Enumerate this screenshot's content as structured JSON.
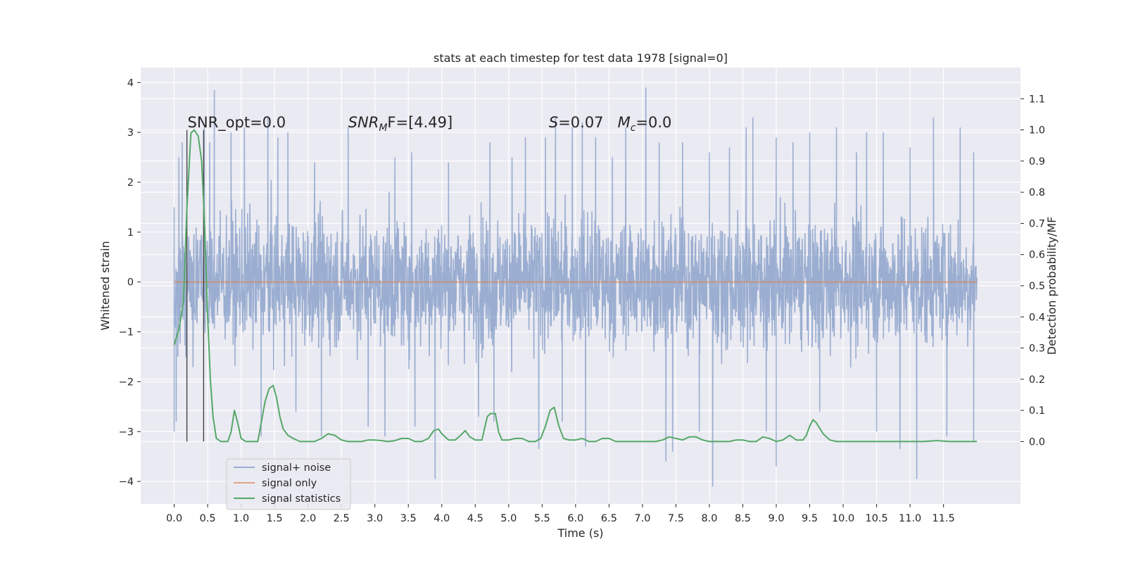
{
  "chart_data": {
    "type": "line",
    "title": "stats at each timestep for test data 1978 [signal=0]",
    "xlabel": "Time (s)",
    "ylabel": "Whitened strain",
    "ylabel_right": "Detection probability/MF",
    "xlim": [
      -0.5,
      12.65
    ],
    "ylim": [
      -4.45,
      4.3
    ],
    "ylim_right": [
      -0.2,
      1.2
    ],
    "x_ticks": [
      0.0,
      0.5,
      1.0,
      1.5,
      2.0,
      2.5,
      3.0,
      3.5,
      4.0,
      4.5,
      5.0,
      5.5,
      6.0,
      6.5,
      7.0,
      7.5,
      8.0,
      8.5,
      9.0,
      9.5,
      10.0,
      10.5,
      11.0,
      11.5
    ],
    "x_tick_labels": [
      "0.0",
      "0.5",
      "1.0",
      "1.5",
      "2.0",
      "2.5",
      "3.0",
      "3.5",
      "4.0",
      "4.5",
      "5.0",
      "5.5",
      "6.0",
      "6.5",
      "7.0",
      "7.5",
      "8.0",
      "8.5",
      "9.0",
      "9.5",
      "10.0",
      "10.5",
      "11.0",
      "11.5"
    ],
    "y_ticks": [
      -4,
      -3,
      -2,
      -1,
      0,
      1,
      2,
      3,
      4
    ],
    "y_tick_labels": [
      "−4",
      "−3",
      "−2",
      "−1",
      "0",
      "1",
      "2",
      "3",
      "4"
    ],
    "y_right_ticks": [
      0.0,
      0.1,
      0.2,
      0.3,
      0.4,
      0.5,
      0.6,
      0.7,
      0.8,
      0.9,
      1.0,
      1.1
    ],
    "y_right_tick_labels": [
      "0.0",
      "0.1",
      "0.2",
      "0.3",
      "0.4",
      "0.5",
      "0.6",
      "0.7",
      "0.8",
      "0.9",
      "1.0",
      "1.1"
    ],
    "grid": true,
    "background": "#eaeaf2",
    "annotations": [
      {
        "text": "SNR_opt=0.0",
        "x": 0.2,
        "y": 3.1
      },
      {
        "text_parts": [
          "SNR",
          "M",
          "F=[4.49]"
        ],
        "x": 2.6,
        "y": 3.1
      },
      {
        "text_parts": [
          "S",
          "=0.07   ",
          "M",
          "c",
          "=0.0"
        ],
        "x": 5.6,
        "y": 3.1
      }
    ],
    "vertical_lines": [
      0.19,
      0.44
    ],
    "series": [
      {
        "name": "signal+ noise",
        "color": "#4c72b0",
        "alpha": 0.5,
        "axis": "left",
        "style": "noise",
        "x_range": [
          0.0,
          12.0
        ],
        "typical_envelope": [
          -1.9,
          1.9
        ],
        "spikes": [
          [
            0.0,
            1.5
          ],
          [
            0.0,
            -3.0
          ],
          [
            0.07,
            2.5
          ],
          [
            0.12,
            2.8
          ],
          [
            0.03,
            -2.8
          ],
          [
            0.45,
            3.1
          ],
          [
            0.53,
            2.8
          ],
          [
            0.6,
            3.85
          ],
          [
            0.85,
            3.0
          ],
          [
            1.05,
            3.1
          ],
          [
            1.3,
            -3.1
          ],
          [
            1.4,
            3.3
          ],
          [
            1.55,
            2.9
          ],
          [
            1.7,
            3.0
          ],
          [
            1.82,
            -2.6
          ],
          [
            2.1,
            2.4
          ],
          [
            2.2,
            -3.1
          ],
          [
            2.6,
            3.1
          ],
          [
            2.9,
            -2.9
          ],
          [
            3.15,
            -3.1
          ],
          [
            3.3,
            2.5
          ],
          [
            3.55,
            2.6
          ],
          [
            3.6,
            -2.9
          ],
          [
            3.9,
            -3.95
          ],
          [
            4.1,
            2.4
          ],
          [
            4.55,
            -2.7
          ],
          [
            4.72,
            2.8
          ],
          [
            4.78,
            -2.8
          ],
          [
            5.05,
            2.5
          ],
          [
            5.25,
            2.9
          ],
          [
            5.45,
            -3.35
          ],
          [
            5.55,
            2.9
          ],
          [
            5.7,
            3.3
          ],
          [
            5.8,
            -2.8
          ],
          [
            5.95,
            3.1
          ],
          [
            6.1,
            3.2
          ],
          [
            6.15,
            -3.3
          ],
          [
            6.3,
            2.9
          ],
          [
            6.55,
            2.5
          ],
          [
            6.75,
            3.1
          ],
          [
            7.05,
            3.9
          ],
          [
            7.25,
            2.8
          ],
          [
            7.35,
            -3.6
          ],
          [
            7.45,
            -3.4
          ],
          [
            7.6,
            2.8
          ],
          [
            7.85,
            -3.0
          ],
          [
            8.0,
            2.6
          ],
          [
            8.05,
            -4.1
          ],
          [
            8.3,
            2.7
          ],
          [
            8.55,
            3.1
          ],
          [
            8.65,
            3.3
          ],
          [
            8.85,
            -3.0
          ],
          [
            9.0,
            2.9
          ],
          [
            9.0,
            -3.7
          ],
          [
            9.25,
            2.8
          ],
          [
            9.5,
            3.0
          ],
          [
            9.65,
            -2.6
          ],
          [
            9.9,
            3.1
          ],
          [
            10.2,
            2.6
          ],
          [
            10.35,
            3.0
          ],
          [
            10.5,
            -3.0
          ],
          [
            10.6,
            3.0
          ],
          [
            10.85,
            -3.35
          ],
          [
            11.0,
            2.7
          ],
          [
            11.1,
            -3.95
          ],
          [
            11.35,
            3.3
          ],
          [
            11.55,
            -3.1
          ],
          [
            11.75,
            3.1
          ],
          [
            11.95,
            2.6
          ],
          [
            11.95,
            -3.2
          ]
        ]
      },
      {
        "name": "signal only",
        "color": "#dd8452",
        "alpha": 0.7,
        "axis": "left",
        "x": [
          0.0,
          12.0
        ],
        "values": [
          0.0,
          0.0
        ]
      },
      {
        "name": "signal statistics",
        "color": "#55a868",
        "axis": "right",
        "x": [
          0.0,
          0.07,
          0.14,
          0.19,
          0.25,
          0.3,
          0.36,
          0.41,
          0.45,
          0.5,
          0.54,
          0.58,
          0.63,
          0.7,
          0.8,
          0.85,
          0.9,
          0.95,
          1.0,
          1.07,
          1.15,
          1.25,
          1.3,
          1.36,
          1.42,
          1.48,
          1.53,
          1.58,
          1.63,
          1.7,
          1.78,
          1.88,
          2.0,
          2.1,
          2.2,
          2.3,
          2.4,
          2.5,
          2.6,
          2.7,
          2.8,
          2.9,
          3.0,
          3.1,
          3.2,
          3.3,
          3.4,
          3.5,
          3.6,
          3.7,
          3.8,
          3.88,
          3.95,
          4.0,
          4.1,
          4.2,
          4.28,
          4.35,
          4.42,
          4.5,
          4.6,
          4.68,
          4.73,
          4.8,
          4.85,
          4.9,
          5.0,
          5.1,
          5.2,
          5.3,
          5.4,
          5.48,
          5.55,
          5.62,
          5.68,
          5.75,
          5.82,
          5.9,
          6.0,
          6.1,
          6.2,
          6.3,
          6.4,
          6.5,
          6.6,
          6.7,
          6.8,
          6.9,
          7.0,
          7.1,
          7.2,
          7.3,
          7.4,
          7.5,
          7.6,
          7.7,
          7.8,
          7.9,
          8.0,
          8.1,
          8.2,
          8.3,
          8.4,
          8.5,
          8.6,
          8.7,
          8.8,
          8.9,
          9.0,
          9.1,
          9.2,
          9.3,
          9.4,
          9.45,
          9.5,
          9.55,
          9.6,
          9.7,
          9.8,
          9.9,
          10.0,
          10.2,
          10.4,
          10.6,
          10.8,
          11.0,
          11.2,
          11.4,
          11.6,
          11.8,
          12.0
        ],
        "values": [
          0.31,
          0.36,
          0.45,
          0.75,
          0.99,
          1.0,
          0.98,
          0.9,
          0.72,
          0.4,
          0.2,
          0.08,
          0.01,
          0.0,
          0.0,
          0.03,
          0.1,
          0.06,
          0.01,
          0.0,
          0.0,
          0.0,
          0.06,
          0.13,
          0.17,
          0.18,
          0.14,
          0.08,
          0.04,
          0.02,
          0.01,
          0.0,
          0.0,
          0.0,
          0.01,
          0.025,
          0.02,
          0.005,
          0.0,
          0.0,
          0.0,
          0.005,
          0.005,
          0.003,
          0.0,
          0.003,
          0.01,
          0.01,
          0.0,
          0.0,
          0.01,
          0.035,
          0.04,
          0.025,
          0.005,
          0.005,
          0.02,
          0.035,
          0.015,
          0.005,
          0.005,
          0.08,
          0.09,
          0.09,
          0.03,
          0.005,
          0.005,
          0.01,
          0.01,
          0.0,
          0.0,
          0.01,
          0.05,
          0.1,
          0.11,
          0.05,
          0.01,
          0.005,
          0.005,
          0.01,
          0.0,
          0.0,
          0.01,
          0.01,
          0.0,
          0.0,
          0.0,
          0.0,
          0.0,
          0.0,
          0.0,
          0.005,
          0.015,
          0.01,
          0.005,
          0.015,
          0.015,
          0.005,
          0.0,
          0.0,
          0.0,
          0.0,
          0.005,
          0.005,
          0.0,
          0.0,
          0.015,
          0.01,
          0.0,
          0.005,
          0.02,
          0.005,
          0.005,
          0.02,
          0.05,
          0.07,
          0.06,
          0.025,
          0.005,
          0.0,
          0.0,
          0.0,
          0.0,
          0.0,
          0.0,
          0.0,
          0.0,
          0.003,
          0.0,
          0.0,
          0.0
        ]
      }
    ],
    "legend": {
      "position": "bottom-left",
      "entries": [
        {
          "label": "signal+ noise",
          "color": "#4c72b0"
        },
        {
          "label": "signal only",
          "color": "#dd8452"
        },
        {
          "label": "signal statistics",
          "color": "#55a868"
        }
      ]
    }
  }
}
